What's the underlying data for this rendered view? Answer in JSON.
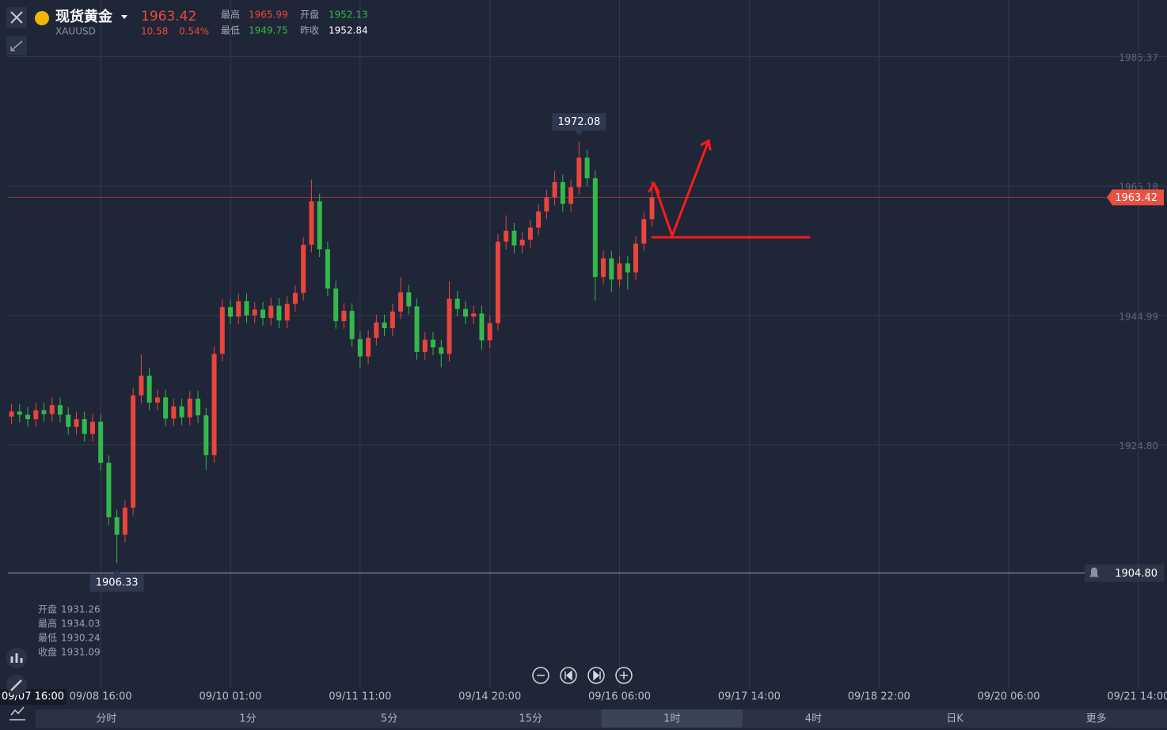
{
  "header": {
    "name": "现货黄金",
    "symbol": "XAUUSD",
    "price": "1963.42",
    "change": "10.58",
    "change_pct": "0.54%",
    "stats": [
      {
        "label": "最高",
        "value": "1965.99"
      },
      {
        "label": "开盘",
        "value": "1952.13"
      },
      {
        "label": "最低",
        "value": "1949.75"
      },
      {
        "label": "昨收",
        "value": "1952.84"
      }
    ]
  },
  "chart_data": {
    "type": "candlestick",
    "categories": [
      null,
      null,
      null,
      null,
      null,
      null,
      null,
      null,
      null,
      null,
      null,
      null,
      "09/08 16:00",
      null,
      null,
      null,
      null,
      null,
      null,
      null,
      null,
      null,
      null,
      null,
      null,
      null,
      null,
      null,
      "09/10 01:00",
      null,
      null,
      null,
      null,
      null,
      null,
      null,
      null,
      null,
      null,
      null,
      null,
      null,
      null,
      null,
      "09/11 11:00",
      null,
      null,
      null,
      null,
      null,
      null,
      null,
      null,
      null,
      null,
      null,
      null,
      null,
      null,
      null,
      "09/14 20:00",
      null,
      null,
      null,
      null,
      null,
      null,
      null,
      null,
      null,
      null,
      null,
      null,
      null,
      null,
      null,
      "09/16 06:00",
      null,
      null,
      null,
      null,
      null,
      null,
      null,
      null,
      null,
      null,
      null,
      null,
      null,
      null,
      null,
      "09/17 14:00",
      null,
      null,
      null,
      null,
      null,
      null,
      null,
      null,
      null,
      null,
      null,
      null,
      null,
      null,
      null,
      "09/18 22:00",
      null,
      null,
      null,
      null,
      null,
      null,
      null,
      null,
      null,
      null,
      null,
      null,
      null,
      null,
      null,
      "09/20 06:00",
      null,
      null,
      null,
      null,
      null,
      null,
      null,
      null,
      null,
      null,
      null,
      null,
      null,
      null,
      null,
      "09/21 14:00"
    ],
    "open": [
      null,
      1929.2,
      1930,
      1929.5,
      1928.8,
      1930.2,
      1929.6,
      1931,
      1929.5,
      1927.6,
      1928.8,
      1926.5,
      1928.4,
      1922,
      1913.5,
      1910.8,
      1915,
      1932.5,
      1935.6,
      1931.4,
      1932.2,
      1928.9,
      1930.8,
      1929.1,
      1932,
      1929.4,
      1923.2,
      1939,
      1946.3,
      1944.8,
      1947.2,
      1945,
      1945.9,
      1944.6,
      1946.5,
      1944.2,
      1946.8,
      1948.5,
      1956,
      1962.8,
      1955.3,
      1949.2,
      1944.1,
      1945.7,
      1941.3,
      1938.6,
      1941.5,
      1943.9,
      1943,
      1945.6,
      1948.6,
      1946.4,
      1939.3,
      1941.2,
      1940,
      1939,
      1947.6,
      1946,
      1944.8,
      1945.3,
      1941.1,
      1943.8,
      1956.5,
      1958.2,
      1955.9,
      1956.8,
      1958.7,
      1961.2,
      1963.4,
      1965.8,
      1962.4,
      1965,
      1969.6,
      1966.4,
      1951,
      1953.9,
      1950.6,
      1953.1,
      1951.7,
      1956.2,
      1960,
      null,
      null,
      null,
      null,
      null,
      null,
      null,
      null,
      null,
      null,
      null,
      null,
      null,
      null,
      null,
      null,
      null,
      null,
      null,
      null,
      null,
      null,
      null,
      null,
      null,
      null,
      null,
      null,
      null,
      null,
      null,
      null,
      null,
      null,
      null,
      null,
      null,
      null,
      null,
      null,
      null,
      null,
      null,
      null,
      null,
      null,
      null,
      null,
      null,
      null,
      null,
      null,
      null,
      null,
      null,
      null,
      null,
      null,
      null,
      null
    ],
    "high": [
      null,
      1931.2,
      1931.2,
      1930.7,
      1931.4,
      1931.4,
      1932.2,
      1932.2,
      1930.7,
      1930,
      1930,
      1929.6,
      1929.6,
      1923.2,
      1914.7,
      1916.2,
      1933.7,
      1938.9,
      1936.8,
      1933.4,
      1933.4,
      1932,
      1932,
      1933.2,
      1933.2,
      1930.6,
      1940.2,
      1947.5,
      1947.5,
      1948.4,
      1948.4,
      1947.1,
      1947.1,
      1947.7,
      1947.7,
      1948,
      1949.7,
      1957.2,
      1966.2,
      1964,
      1956.5,
      1950.4,
      1946.9,
      1946.9,
      1942.5,
      1942.7,
      1945.1,
      1945.1,
      1946.8,
      1951,
      1949.8,
      1947.6,
      1942.4,
      1942.4,
      1941.2,
      1950.3,
      1948.8,
      1947.2,
      1946.5,
      1946.5,
      1945,
      1957.7,
      1960.6,
      1959.4,
      1958,
      1959.9,
      1962.4,
      1964.6,
      1967.5,
      1967,
      1966.2,
      1972.08,
      1970.8,
      1967.6,
      1955.1,
      1955.1,
      1954.3,
      1954.3,
      1957.4,
      1961.2,
      1965.99,
      null,
      null,
      null,
      null,
      null,
      null,
      null,
      null,
      null,
      null,
      null,
      null,
      null,
      null,
      null,
      null,
      null,
      null,
      null,
      null,
      null,
      null,
      null,
      null,
      null,
      null,
      null,
      null,
      null,
      null,
      null,
      null,
      null,
      null,
      null,
      null,
      null,
      null,
      null,
      null,
      null,
      null,
      null,
      null,
      null,
      null,
      null,
      null,
      null,
      null,
      null,
      null,
      null,
      null,
      null,
      null,
      null,
      null,
      null,
      null
    ],
    "low": [
      null,
      1928,
      1928.3,
      1927.6,
      1927.6,
      1928.4,
      1928.4,
      1928.3,
      1926.4,
      1926.4,
      1925.3,
      1925.3,
      1920.8,
      1912.3,
      1906.33,
      1909.6,
      1913.8,
      1931.3,
      1930.2,
      1930.2,
      1927.7,
      1927.7,
      1927.9,
      1927.9,
      1928.2,
      1920.9,
      1922,
      1937.8,
      1943.6,
      1943.6,
      1943.8,
      1943.8,
      1943.4,
      1943.4,
      1943,
      1943,
      1945.6,
      1947.3,
      1954.8,
      1954.1,
      1948,
      1942.9,
      1942.9,
      1940.1,
      1936.8,
      1937.4,
      1940.3,
      1941.8,
      1941.8,
      1944.4,
      1945.2,
      1938.1,
      1938.1,
      1938.8,
      1936.9,
      1937.8,
      1944.8,
      1943.6,
      1943.6,
      1939.6,
      1939.9,
      1942.6,
      1955.3,
      1954.7,
      1954.7,
      1955.6,
      1957.5,
      1960,
      1962.2,
      1961.2,
      1961.2,
      1963.8,
      1965.2,
      1947.3,
      1949.8,
      1948.6,
      1949.4,
      1949,
      1950.5,
      1955,
      1958.8,
      null,
      null,
      null,
      null,
      null,
      null,
      null,
      null,
      null,
      null,
      null,
      null,
      null,
      null,
      null,
      null,
      null,
      null,
      null,
      null,
      null,
      null,
      null,
      null,
      null,
      null,
      null,
      null,
      null,
      null,
      null,
      null,
      null,
      null,
      null,
      null,
      null,
      null,
      null,
      null,
      null,
      null,
      null,
      null,
      null,
      null,
      null,
      null,
      null,
      null,
      null,
      null,
      null,
      null,
      null,
      null,
      null,
      null,
      null,
      null
    ],
    "close": [
      null,
      1930,
      1929.5,
      1928.8,
      1930.2,
      1929.6,
      1931,
      1929.5,
      1927.6,
      1928.8,
      1926.5,
      1928.4,
      1922,
      1913.5,
      1910.8,
      1915,
      1932.5,
      1935.6,
      1931.4,
      1932.2,
      1928.9,
      1930.8,
      1929.1,
      1932,
      1929.4,
      1923.2,
      1939,
      1946.3,
      1944.8,
      1947.2,
      1945,
      1945.9,
      1944.6,
      1946.5,
      1944.2,
      1946.8,
      1948.5,
      1956,
      1962.8,
      1955.3,
      1949.2,
      1944.1,
      1945.7,
      1941.3,
      1938.6,
      1941.5,
      1943.9,
      1943,
      1945.6,
      1948.6,
      1946.4,
      1939.3,
      1941.2,
      1940,
      1939,
      1947.6,
      1946,
      1944.8,
      1945.3,
      1941.1,
      1943.8,
      1956.5,
      1958.2,
      1955.9,
      1956.8,
      1958.7,
      1961.2,
      1963.4,
      1965.8,
      1962.4,
      1965,
      1969.6,
      1966.4,
      1951,
      1953.9,
      1950.6,
      1953.1,
      1951.7,
      1956.2,
      1960,
      1963.42,
      null,
      null,
      null,
      null,
      null,
      null,
      null,
      null,
      null,
      null,
      null,
      null,
      null,
      null,
      null,
      null,
      null,
      null,
      null,
      null,
      null,
      null,
      null,
      null,
      null,
      null,
      null,
      null,
      null,
      null,
      null,
      null,
      null,
      null,
      null,
      null,
      null,
      null,
      null,
      null,
      null,
      null,
      null,
      null,
      null,
      null,
      null,
      null,
      null,
      null,
      null,
      null,
      null,
      null,
      null,
      null,
      null,
      null,
      null,
      null
    ],
    "up_color": "#e8453c",
    "down_color": "#35b84b",
    "ylim": [
      1887.1,
      1994.2
    ],
    "yticks": [
      1985.37,
      1965.18,
      1944.99,
      {
        "value": 1924.8,
        "label": "1924.80"
      }
    ],
    "grid": true,
    "last_price": 1963.42,
    "alert_price": {
      "value": 1904.8,
      "label": "1904.80"
    },
    "crosshair_label": "09/07 16:00"
  },
  "ohlc_panel": [
    {
      "label": "开盘",
      "value": "1931.26"
    },
    {
      "label": "最高",
      "value": "1934.03"
    },
    {
      "label": "最低",
      "value": "1930.24"
    },
    {
      "label": "收盘",
      "value": "1931.09"
    }
  ],
  "timeframes": [
    "分时",
    "1分",
    "5分",
    "15分",
    "1时",
    "4时",
    "日K",
    "更多"
  ]
}
